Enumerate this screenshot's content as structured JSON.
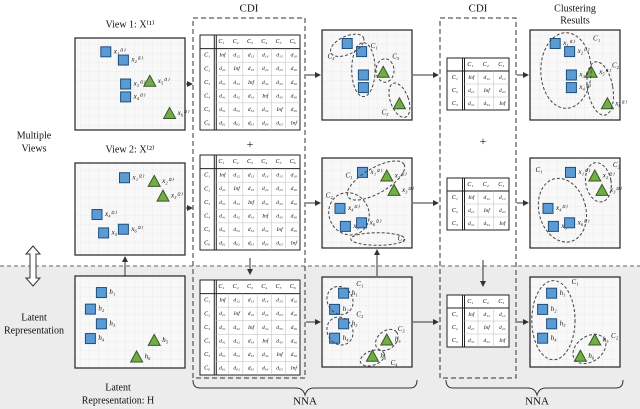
{
  "side_labels": {
    "multiple_views": [
      "Multiple",
      "Views"
    ],
    "latent": [
      "Latent",
      "Representation"
    ],
    "latent_h": [
      "Latent",
      "Representation: H"
    ]
  },
  "view_titles": [
    "View 1: X⁽¹⁾",
    "View 2: X⁽²⁾"
  ],
  "cdi_titles": [
    "CDI",
    "CDI"
  ],
  "result_title": [
    "Clustering",
    "Results"
  ],
  "nna_labels": [
    "NNA",
    "NNA"
  ],
  "plus_signs": [
    "+",
    "+"
  ],
  "input_panels": [
    {
      "labels": [
        "x₁⁽¹⁾",
        "x₂⁽¹⁾",
        "x₃⁽¹⁾",
        "x₄⁽¹⁾",
        "x₅⁽¹⁾",
        "x₆⁽¹⁾"
      ]
    },
    {
      "labels": [
        "x₁⁽²⁾",
        "x₂⁽²⁾",
        "x₃⁽²⁾",
        "x₄⁽²⁾",
        "x₅⁽²⁾",
        "x₆⁽²⁾"
      ]
    },
    {
      "labels": [
        "h₁",
        "h₂",
        "h₃",
        "h₄",
        "h₅",
        "h₆"
      ]
    }
  ],
  "cluster_panels": [
    {
      "clusters": [
        "C₄",
        "C₁",
        "C₅",
        "C₃"
      ]
    },
    {
      "clusters": [
        "C₁",
        "C₂",
        "C₃"
      ],
      "labels": [
        "x₁⁽²⁾",
        "x₂⁽²⁾",
        "x₃⁽²⁾",
        "x₄⁽²⁾",
        "x₅⁽²⁾",
        "x₆⁽²⁾"
      ]
    },
    {
      "clusters": [
        "C₁",
        "C₂",
        "C₃",
        "C₄"
      ],
      "labels": [
        "h₁",
        "h₂",
        "h₃",
        "h₄",
        "h₅",
        "h₆"
      ]
    },
    {
      "clusters": [
        "C₁",
        "C₂"
      ],
      "labels": [
        "x₁⁽¹⁾",
        "x₂⁽¹⁾",
        "x₃⁽¹⁾",
        "x₄⁽¹⁾",
        "x₅⁽¹⁾",
        "x₆⁽¹⁾"
      ]
    },
    {
      "clusters": [
        "C₁",
        "C₂"
      ],
      "labels": [
        "x₁⁽²⁾",
        "x₂⁽²⁾",
        "x₃⁽²⁾",
        "x₄⁽²⁾",
        "x₅⁽²⁾",
        "x₆⁽²⁾"
      ]
    },
    {
      "clusters": [
        "C₁",
        "C₂"
      ],
      "labels": [
        "h₁",
        "h₂",
        "h₃",
        "h₄",
        "h₅",
        "h₆"
      ]
    }
  ],
  "big_matrices": [
    {
      "headers": [
        "C₁",
        "C₂",
        "C₃",
        "C₄",
        "C₅",
        "C₆"
      ],
      "row_headers": [
        "C₁",
        "C₂",
        "C₃",
        "C₄",
        "C₅",
        "C₆"
      ],
      "rows": [
        [
          "Inf",
          "d₁₂",
          "d₁₃",
          "d₁₄",
          "d₁₅",
          "d₁₆"
        ],
        [
          "d₂₁",
          "Inf",
          "d₂₃",
          "d₂₄",
          "d₂₅",
          "d₂₆"
        ],
        [
          "d₃₁",
          "d₃₂",
          "Inf",
          "d₃₄",
          "d₃₅",
          "d₃₆"
        ],
        [
          "d₄₁",
          "d₄₂",
          "d₄₃",
          "Inf",
          "d₄₅",
          "d₄₆"
        ],
        [
          "d₅₁",
          "d₅₂",
          "d₅₃",
          "d₅₄",
          "Inf",
          "d₅₆"
        ],
        [
          "d₆₁",
          "d₆₂",
          "d₆₃",
          "d₆₄",
          "d₆₅",
          "Inf"
        ]
      ]
    },
    {
      "headers": [
        "C₁",
        "C₂",
        "C₃",
        "C₄",
        "C₅",
        "C₆"
      ],
      "row_headers": [
        "C₁",
        "C₂",
        "C₃",
        "C₄",
        "C₅",
        "C₆"
      ],
      "rows": [
        [
          "Inf",
          "d₁₂",
          "d₁₃",
          "d₁₄",
          "d₁₅",
          "d₁₆"
        ],
        [
          "d₂₁",
          "Inf",
          "d₂₃",
          "d₂₄",
          "d₂₅",
          "d₂₆"
        ],
        [
          "d₃₁",
          "d₃₂",
          "Inf",
          "d₃₄",
          "d₃₅",
          "d₃₆"
        ],
        [
          "d₄₁",
          "d₄₂",
          "d₄₃",
          "Inf",
          "d₄₅",
          "d₄₆"
        ],
        [
          "d₅₁",
          "d₅₂",
          "d₅₃",
          "d₅₄",
          "Inf",
          "d₅₆"
        ],
        [
          "d₆₁",
          "d₆₂",
          "d₆₃",
          "d₆₄",
          "d₆₅",
          "Inf"
        ]
      ]
    },
    {
      "headers": [
        "C₁",
        "C₂",
        "C₃",
        "C₄",
        "C₅",
        "C₆"
      ],
      "row_headers": [
        "C₁",
        "C₂",
        "C₃",
        "C₄",
        "C₅",
        "C₆"
      ],
      "rows": [
        [
          "Inf",
          "d₁₂",
          "d₁₃",
          "d₁₄",
          "d₁₅",
          "d₁₆"
        ],
        [
          "d₂₁",
          "Inf",
          "d₂₃",
          "d₂₄",
          "d₂₅",
          "d₂₆"
        ],
        [
          "d₃₁",
          "d₃₂",
          "Inf",
          "d₃₄",
          "d₃₅",
          "d₃₆"
        ],
        [
          "d₄₁",
          "d₄₂",
          "d₄₃",
          "Inf",
          "d₄₅",
          "d₄₆"
        ],
        [
          "d₅₁",
          "d₅₂",
          "d₅₃",
          "d₅₄",
          "Inf",
          "d₅₆"
        ],
        [
          "d₆₁",
          "d₆₂",
          "d₆₃",
          "d₆₄",
          "d₆₅",
          "Inf"
        ]
      ]
    }
  ],
  "small_matrices": [
    {
      "headers": [
        "C₁",
        "C₂",
        "C₃"
      ],
      "row_headers": [
        "C₁",
        "C₂",
        "C₃"
      ],
      "rows": [
        [
          "Inf",
          "d₁₂",
          "d₁₃"
        ],
        [
          "d₂₁",
          "Inf",
          "d₂₃"
        ],
        [
          "d₃₁",
          "d₃₂",
          "Inf"
        ]
      ]
    },
    {
      "headers": [
        "C₁",
        "C₂",
        "C₃"
      ],
      "row_headers": [
        "C₁",
        "C₂",
        "C₃"
      ],
      "rows": [
        [
          "Inf",
          "d₁₂",
          "d₁₃"
        ],
        [
          "d₂₁",
          "Inf",
          "d₂₃"
        ],
        [
          "d₃₁",
          "d₃₂",
          "Inf"
        ]
      ]
    },
    {
      "headers": [
        "C₁",
        "C₂",
        "C₃"
      ],
      "row_headers": [
        "C₁",
        "C₂",
        "C₃"
      ],
      "rows": [
        [
          "Inf",
          "d₁₂",
          "d₁₃"
        ],
        [
          "d₂₁",
          "Inf",
          "d₂₃"
        ],
        [
          "d₃₁",
          "d₃₂",
          "Inf"
        ]
      ]
    }
  ]
}
